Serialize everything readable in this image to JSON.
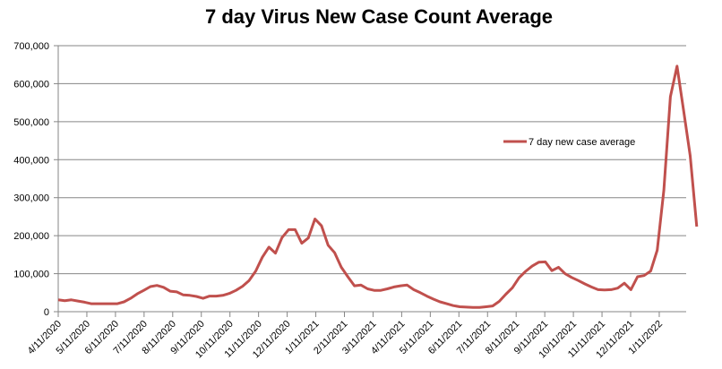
{
  "chart_data": {
    "type": "line",
    "title": "7 day Virus New Case Count Average",
    "xlabel": "",
    "ylabel": "",
    "ylim": [
      0,
      700000
    ],
    "yticks": [
      "0",
      "100,000",
      "200,000",
      "300,000",
      "400,000",
      "500,000",
      "600,000",
      "700,000"
    ],
    "grid": true,
    "legend_position": "right",
    "categories": [
      "4/11/2020",
      "5/11/2020",
      "6/11/2020",
      "7/11/2020",
      "8/11/2020",
      "9/11/2020",
      "10/11/2020",
      "11/11/2020",
      "12/11/2020",
      "1/11/2021",
      "2/11/2021",
      "3/11/2021",
      "4/11/2021",
      "5/11/2021",
      "6/11/2021",
      "7/11/2021",
      "8/11/2021",
      "9/11/2021",
      "10/11/2021",
      "11/11/2021",
      "12/11/2021",
      "1/11/2022"
    ],
    "series": [
      {
        "name": "7 day new case average",
        "color": "#c0504d",
        "points": [
          [
            0.0,
            31000
          ],
          [
            0.23,
            29000
          ],
          [
            0.46,
            31000
          ],
          [
            0.69,
            28000
          ],
          [
            0.92,
            25000
          ],
          [
            1.15,
            21000
          ],
          [
            1.38,
            21000
          ],
          [
            1.61,
            21000
          ],
          [
            1.84,
            21000
          ],
          [
            2.07,
            21000
          ],
          [
            2.3,
            26000
          ],
          [
            2.53,
            35000
          ],
          [
            2.76,
            47000
          ],
          [
            2.99,
            56000
          ],
          [
            3.22,
            66000
          ],
          [
            3.45,
            69000
          ],
          [
            3.68,
            64000
          ],
          [
            3.91,
            54000
          ],
          [
            4.14,
            52000
          ],
          [
            4.37,
            44000
          ],
          [
            4.6,
            43000
          ],
          [
            4.83,
            40000
          ],
          [
            5.06,
            35000
          ],
          [
            5.29,
            41000
          ],
          [
            5.52,
            41000
          ],
          [
            5.75,
            43000
          ],
          [
            5.98,
            48000
          ],
          [
            6.21,
            56000
          ],
          [
            6.44,
            67000
          ],
          [
            6.67,
            82000
          ],
          [
            6.9,
            107000
          ],
          [
            7.13,
            143000
          ],
          [
            7.36,
            170000
          ],
          [
            7.59,
            154000
          ],
          [
            7.82,
            195000
          ],
          [
            8.05,
            216000
          ],
          [
            8.28,
            216000
          ],
          [
            8.51,
            180000
          ],
          [
            8.74,
            194000
          ],
          [
            8.97,
            244000
          ],
          [
            9.2,
            226000
          ],
          [
            9.43,
            175000
          ],
          [
            9.66,
            155000
          ],
          [
            9.89,
            117000
          ],
          [
            10.12,
            92000
          ],
          [
            10.35,
            68000
          ],
          [
            10.58,
            70000
          ],
          [
            10.81,
            60000
          ],
          [
            11.04,
            56000
          ],
          [
            11.27,
            56000
          ],
          [
            11.5,
            60000
          ],
          [
            11.73,
            65000
          ],
          [
            11.96,
            68000
          ],
          [
            12.19,
            70000
          ],
          [
            12.42,
            58000
          ],
          [
            12.65,
            50000
          ],
          [
            12.88,
            41000
          ],
          [
            13.11,
            33000
          ],
          [
            13.34,
            26000
          ],
          [
            13.57,
            21000
          ],
          [
            13.8,
            16000
          ],
          [
            14.03,
            13000
          ],
          [
            14.26,
            12000
          ],
          [
            14.49,
            11000
          ],
          [
            14.72,
            11000
          ],
          [
            14.95,
            13000
          ],
          [
            15.18,
            15000
          ],
          [
            15.41,
            27000
          ],
          [
            15.64,
            46000
          ],
          [
            15.87,
            63000
          ],
          [
            16.1,
            89000
          ],
          [
            16.33,
            106000
          ],
          [
            16.56,
            120000
          ],
          [
            16.79,
            130000
          ],
          [
            17.02,
            131000
          ],
          [
            17.25,
            108000
          ],
          [
            17.48,
            117000
          ],
          [
            17.71,
            100000
          ],
          [
            17.94,
            90000
          ],
          [
            18.17,
            82000
          ],
          [
            18.4,
            73000
          ],
          [
            18.63,
            65000
          ],
          [
            18.86,
            58000
          ],
          [
            19.09,
            57000
          ],
          [
            19.32,
            58000
          ],
          [
            19.55,
            62000
          ],
          [
            19.78,
            75000
          ],
          [
            20.01,
            58000
          ],
          [
            20.24,
            92000
          ],
          [
            20.47,
            95000
          ],
          [
            20.7,
            107000
          ],
          [
            20.93,
            162000
          ],
          [
            21.16,
            320000
          ],
          [
            21.39,
            566000
          ],
          [
            21.62,
            646000
          ],
          [
            21.85,
            530000
          ],
          [
            22.08,
            410000
          ],
          [
            22.31,
            224000
          ]
        ]
      }
    ]
  },
  "legend": {
    "label": "7 day new case average"
  }
}
